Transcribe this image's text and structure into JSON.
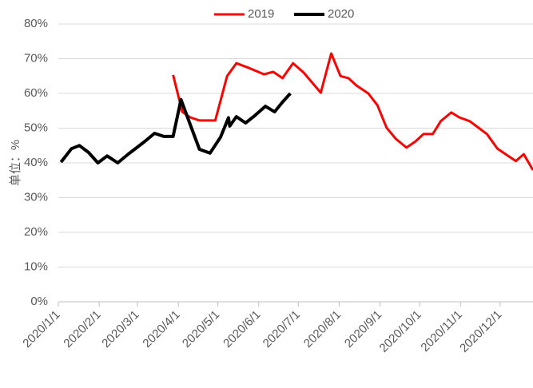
{
  "chart_data": {
    "type": "line",
    "y_label": "单位：%",
    "legend": "top",
    "grid": true,
    "xlim": [
      "2020/1/1",
      "2020/12/26"
    ],
    "xticks": [
      "2020/1/1",
      "2020/2/1",
      "2020/3/1",
      "2020/4/1",
      "2020/5/1",
      "2020/6/1",
      "2020/7/1",
      "2020/8/1",
      "2020/9/1",
      "2020/10/1",
      "2020/11/1",
      "2020/12/1"
    ],
    "ylim": [
      0,
      80
    ],
    "yticks": [
      {
        "value": 0,
        "label": "0%"
      },
      {
        "value": 10,
        "label": "10%"
      },
      {
        "value": 20,
        "label": "20%"
      },
      {
        "value": 30,
        "label": "30%"
      },
      {
        "value": 40,
        "label": "40%"
      },
      {
        "value": 50,
        "label": "50%"
      },
      {
        "value": 60,
        "label": "60%"
      },
      {
        "value": 70,
        "label": "70%"
      },
      {
        "value": 80,
        "label": "80%"
      }
    ],
    "series": [
      {
        "name": "2019",
        "color": "#ff0000",
        "x": [
          "2020/3/28",
          "2020/4/4",
          "2020/4/10",
          "2020/4/17",
          "2020/4/29",
          "2020/5/8",
          "2020/5/15",
          "2020/5/24",
          "2020/6/5",
          "2020/6/12",
          "2020/6/19",
          "2020/6/27",
          "2020/7/5",
          "2020/7/18",
          "2020/7/26",
          "2020/8/2",
          "2020/8/8",
          "2020/8/14",
          "2020/8/23",
          "2020/8/30",
          "2020/9/6",
          "2020/9/13",
          "2020/9/21",
          "2020/9/28",
          "2020/10/4",
          "2020/10/11",
          "2020/10/17",
          "2020/10/25",
          "2020/10/31",
          "2020/11/8",
          "2020/11/15",
          "2020/11/21",
          "2020/11/29",
          "2020/12/6",
          "2020/12/13",
          "2020/12/19",
          "2020/12/26"
        ],
        "values": [
          65.3,
          54.7,
          53.1,
          52.2,
          52.2,
          65,
          68.7,
          67.4,
          65.5,
          66.2,
          64.4,
          68.7,
          66,
          60.2,
          71.5,
          65,
          64.4,
          62.3,
          60,
          56.6,
          50.1,
          46.9,
          44.4,
          46.2,
          48.3,
          48.3,
          52,
          54.5,
          53.1,
          52,
          50,
          48.3,
          44.1,
          42.3,
          40.5,
          42.5,
          37.9
        ]
      },
      {
        "name": "2020",
        "color": "#000000",
        "x": [
          "2020/1/3",
          "2020/1/11",
          "2020/1/17",
          "2020/1/24",
          "2020/1/31",
          "2020/2/7",
          "2020/2/15",
          "2020/2/23",
          "2020/3/6",
          "2020/3/14",
          "2020/3/21",
          "2020/3/28",
          "2020/4/3",
          "2020/4/11",
          "2020/4/17",
          "2020/4/25",
          "2020/5/3",
          "2020/5/9",
          "2020/5/10",
          "2020/5/15",
          "2020/5/22",
          "2020/5/29",
          "2020/6/6",
          "2020/6/13",
          "2020/6/19",
          "2020/6/25"
        ],
        "values": [
          40.2,
          44.1,
          45,
          43,
          40,
          42,
          40,
          42.5,
          46,
          48.5,
          47.6,
          47.6,
          58.2,
          50,
          43.9,
          42.8,
          47.4,
          53,
          50.6,
          53.3,
          51.5,
          53.6,
          56.3,
          54.7,
          57.5,
          60
        ]
      }
    ]
  }
}
